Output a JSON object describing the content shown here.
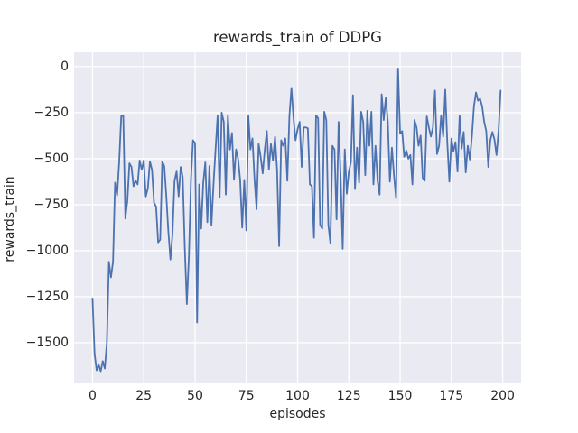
{
  "chart_data": {
    "type": "line",
    "title": "rewards_train of DDPG",
    "xlabel": "episodes",
    "ylabel": "rewards_train",
    "x_ticks": [
      0,
      25,
      50,
      75,
      100,
      125,
      150,
      175,
      200
    ],
    "x_tick_labels": [
      "0",
      "25",
      "50",
      "75",
      "100",
      "125",
      "150",
      "175",
      "200"
    ],
    "y_ticks": [
      0,
      -250,
      -500,
      -750,
      -1000,
      -1250,
      -1500
    ],
    "y_tick_labels": [
      "0",
      "−250",
      "−500",
      "−750",
      "−1000",
      "−1250",
      "−1500"
    ],
    "xlim": [
      -9,
      209
    ],
    "ylim": [
      -1721,
      78
    ],
    "grid": true,
    "legend": false,
    "series": [
      {
        "name": "rewards_train",
        "x_start": 0,
        "x_step": 1,
        "values": [
          -1260,
          -1560,
          -1650,
          -1620,
          -1655,
          -1600,
          -1640,
          -1500,
          -1060,
          -1145,
          -1060,
          -630,
          -700,
          -520,
          -270,
          -265,
          -825,
          -730,
          -525,
          -545,
          -650,
          -620,
          -640,
          -510,
          -560,
          -510,
          -705,
          -660,
          -515,
          -560,
          -740,
          -760,
          -955,
          -940,
          -515,
          -540,
          -705,
          -900,
          -1048,
          -910,
          -620,
          -570,
          -705,
          -545,
          -600,
          -985,
          -1290,
          -1030,
          -615,
          -400,
          -415,
          -1390,
          -640,
          -880,
          -630,
          -520,
          -845,
          -540,
          -860,
          -640,
          -450,
          -265,
          -710,
          -250,
          -300,
          -695,
          -265,
          -450,
          -360,
          -615,
          -450,
          -500,
          -615,
          -875,
          -615,
          -890,
          -265,
          -450,
          -390,
          -615,
          -775,
          -420,
          -490,
          -580,
          -450,
          -350,
          -560,
          -420,
          -510,
          -380,
          -560,
          -975,
          -400,
          -430,
          -390,
          -620,
          -270,
          -115,
          -280,
          -400,
          -340,
          -300,
          -545,
          -330,
          -330,
          -335,
          -640,
          -650,
          -930,
          -265,
          -280,
          -860,
          -880,
          -245,
          -290,
          -860,
          -960,
          -430,
          -450,
          -830,
          -300,
          -600,
          -990,
          -450,
          -690,
          -570,
          -520,
          -155,
          -665,
          -440,
          -630,
          -245,
          -300,
          -590,
          -240,
          -430,
          -245,
          -640,
          -430,
          -620,
          -695,
          -150,
          -290,
          -170,
          -300,
          -625,
          -440,
          -590,
          -715,
          -10,
          -365,
          -350,
          -490,
          -455,
          -500,
          -480,
          -640,
          -290,
          -330,
          -430,
          -375,
          -605,
          -620,
          -270,
          -330,
          -380,
          -330,
          -130,
          -475,
          -430,
          -265,
          -380,
          -125,
          -410,
          -625,
          -390,
          -460,
          -410,
          -570,
          -265,
          -445,
          -355,
          -575,
          -430,
          -505,
          -380,
          -215,
          -140,
          -185,
          -175,
          -215,
          -300,
          -350,
          -545,
          -400,
          -355,
          -395,
          -480,
          -350,
          -130
        ]
      }
    ],
    "colors": {
      "line": "#4C72B0",
      "plot_background": "#EAEAF2",
      "grid": "#FFFFFF",
      "figure_background": "#FFFFFF",
      "text": "#262626"
    }
  }
}
